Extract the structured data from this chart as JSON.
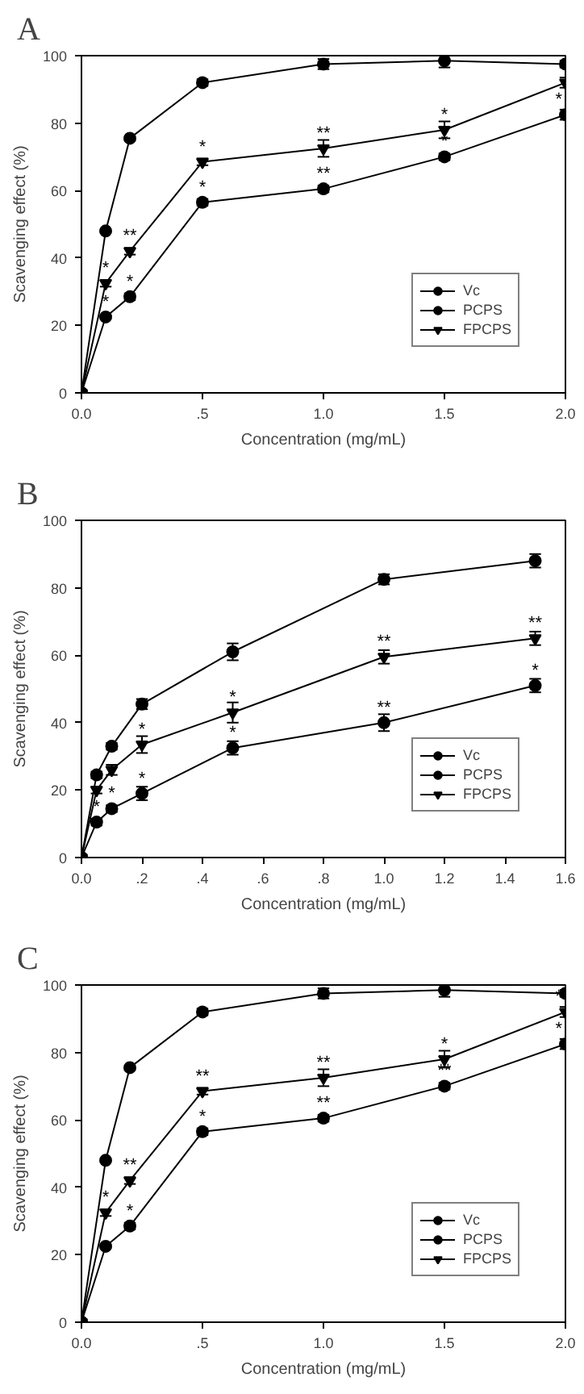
{
  "chart_data": [
    {
      "type": "line",
      "title": "A",
      "xlabel": "Concentration (mg/mL)",
      "ylabel": "Scavenging effect (%)",
      "x": [
        0,
        0.1,
        0.2,
        0.5,
        1.0,
        1.5,
        2.0
      ],
      "xlim": [
        0,
        2.0
      ],
      "ylim": [
        0,
        100
      ],
      "xticks": [
        {
          "value": 0,
          "label": "0.0"
        },
        {
          "value": 0.5,
          "label": ".5"
        },
        {
          "value": 1.0,
          "label": "1.0"
        },
        {
          "value": 1.5,
          "label": "1.5"
        },
        {
          "value": 2.0,
          "label": "2.0"
        }
      ],
      "yticks": [
        0,
        20,
        40,
        60,
        80,
        100
      ],
      "grid": false,
      "legend": "bottom right",
      "line_style": "solid",
      "series": [
        {
          "name": "Vc",
          "color": "#000000",
          "marker": "circle",
          "values": [
            0,
            48,
            75.5,
            92,
            97.5,
            98.5,
            97.5
          ],
          "errors": [
            null,
            0.5,
            0.5,
            1,
            1.5,
            2,
            1
          ]
        },
        {
          "name": "PCPS",
          "color": "#000000",
          "marker": "circle",
          "values": [
            0,
            22.5,
            28.5,
            56.5,
            60.5,
            70,
            82.5
          ],
          "errors": [
            null,
            0.5,
            1,
            1,
            1,
            1,
            1.5
          ]
        },
        {
          "name": "FPCPS",
          "color": "#000000",
          "marker": "triangle",
          "values": [
            0,
            32.5,
            42,
            68.5,
            72.5,
            78,
            92
          ],
          "errors": [
            null,
            1,
            1,
            1,
            2.5,
            2.5,
            1.5
          ]
        }
      ],
      "annotations": [
        {
          "text": "*",
          "x": 0.1,
          "y": 32.5
        },
        {
          "text": "**",
          "x": 0.2,
          "y": 42
        },
        {
          "text": "*",
          "x": 0.5,
          "y": 68.5
        },
        {
          "text": "**",
          "x": 1.0,
          "y": 72.5
        },
        {
          "text": "*",
          "x": 1.5,
          "y": 78
        },
        {
          "text": "*",
          "x": 0.1,
          "y": 22.5
        },
        {
          "text": "*",
          "x": 0.2,
          "y": 28.5
        },
        {
          "text": "*",
          "x": 0.5,
          "y": 56.5
        },
        {
          "text": "**",
          "x": 1.0,
          "y": 60.5
        },
        {
          "text": "*",
          "x": 1.5,
          "y": 70
        },
        {
          "text": "*",
          "x": 2.0,
          "y": 82.5
        }
      ]
    },
    {
      "type": "line",
      "title": "B",
      "xlabel": "Concentration (mg/mL)",
      "ylabel": "Scavenging effect (%)",
      "x": [
        0,
        0.05,
        0.1,
        0.2,
        0.5,
        1.0,
        1.5
      ],
      "xlim": [
        0,
        1.6
      ],
      "ylim": [
        0,
        100
      ],
      "xticks": [
        {
          "value": 0,
          "label": "0.0"
        },
        {
          "value": 0.2,
          "label": ".2"
        },
        {
          "value": 0.4,
          "label": ".4"
        },
        {
          "value": 0.6,
          "label": ".6"
        },
        {
          "value": 0.8,
          "label": ".8"
        },
        {
          "value": 1.0,
          "label": "1.0"
        },
        {
          "value": 1.2,
          "label": "1.2"
        },
        {
          "value": 1.4,
          "label": "1.4"
        },
        {
          "value": 1.6,
          "label": "1.6"
        }
      ],
      "yticks": [
        0,
        20,
        40,
        60,
        80,
        100
      ],
      "grid": false,
      "legend": "bottom right",
      "line_style": "solid",
      "series": [
        {
          "name": "Vc",
          "color": "#000000",
          "marker": "circle",
          "values": [
            0,
            24.5,
            33,
            45.5,
            61,
            82.5,
            88
          ],
          "errors": [
            null,
            1,
            1,
            1.5,
            2.5,
            1.5,
            2
          ]
        },
        {
          "name": "PCPS",
          "color": "#000000",
          "marker": "circle",
          "values": [
            0,
            10.5,
            14.5,
            19,
            32.5,
            40,
            51
          ],
          "errors": [
            null,
            1,
            1,
            2,
            2,
            2.5,
            2
          ]
        },
        {
          "name": "FPCPS",
          "color": "#000000",
          "marker": "triangle",
          "values": [
            0,
            20,
            26,
            33.5,
            43,
            59.5,
            65
          ],
          "errors": [
            null,
            1,
            1.5,
            2.5,
            3,
            2,
            2
          ]
        }
      ],
      "annotations": [
        {
          "text": "*",
          "x": 0.05,
          "y": 10.5
        },
        {
          "text": "*",
          "x": 0.1,
          "y": 14.5
        },
        {
          "text": "*",
          "x": 0.2,
          "y": 19
        },
        {
          "text": "*",
          "x": 0.5,
          "y": 32.5
        },
        {
          "text": "**",
          "x": 1.0,
          "y": 40
        },
        {
          "text": "*",
          "x": 1.5,
          "y": 51
        },
        {
          "text": "*",
          "x": 0.2,
          "y": 33.5
        },
        {
          "text": "*",
          "x": 0.5,
          "y": 43
        },
        {
          "text": "**",
          "x": 1.0,
          "y": 59.5
        },
        {
          "text": "**",
          "x": 1.5,
          "y": 65
        }
      ]
    },
    {
      "type": "line",
      "title": "C",
      "xlabel": "Concentration (mg/mL)",
      "ylabel": "Scavenging effect (%)",
      "x": [
        0,
        0.1,
        0.2,
        0.5,
        1.0,
        1.5,
        2.0
      ],
      "xlim": [
        0,
        2.0
      ],
      "ylim": [
        0,
        100
      ],
      "xticks": [
        {
          "value": 0,
          "label": "0.0"
        },
        {
          "value": 0.5,
          "label": ".5"
        },
        {
          "value": 1.0,
          "label": "1.0"
        },
        {
          "value": 1.5,
          "label": "1.5"
        },
        {
          "value": 2.0,
          "label": "2.0"
        }
      ],
      "yticks": [
        0,
        20,
        40,
        60,
        80,
        100
      ],
      "grid": false,
      "legend": "bottom right",
      "line_style": "solid",
      "series": [
        {
          "name": "Vc",
          "color": "#000000",
          "marker": "circle",
          "values": [
            0,
            48,
            75.5,
            92,
            97.5,
            98.5,
            97.5
          ],
          "errors": [
            null,
            0.5,
            0.5,
            1,
            1.5,
            2,
            1
          ]
        },
        {
          "name": "PCPS",
          "color": "#000000",
          "marker": "circle",
          "values": [
            0,
            22.5,
            28.5,
            56.5,
            60.5,
            70,
            82.5
          ],
          "errors": [
            null,
            0.5,
            1,
            1,
            1,
            1,
            1.5
          ]
        },
        {
          "name": "FPCPS",
          "color": "#000000",
          "marker": "triangle",
          "values": [
            0,
            32.5,
            42,
            68.5,
            72.5,
            78,
            92
          ],
          "errors": [
            null,
            1,
            1,
            1,
            2.5,
            2.5,
            1.5
          ]
        }
      ],
      "annotations": [
        {
          "text": "*",
          "x": 0.1,
          "y": 32.5
        },
        {
          "text": "**",
          "x": 0.2,
          "y": 42
        },
        {
          "text": "**",
          "x": 0.5,
          "y": 68.5
        },
        {
          "text": "**",
          "x": 1.0,
          "y": 72.5
        },
        {
          "text": "*",
          "x": 1.5,
          "y": 78
        },
        {
          "text": "*",
          "x": 2.0,
          "y": 92
        },
        {
          "text": "*",
          "x": 0.2,
          "y": 28.5
        },
        {
          "text": "*",
          "x": 0.5,
          "y": 56.5
        },
        {
          "text": "**",
          "x": 1.0,
          "y": 60.5
        },
        {
          "text": "**",
          "x": 1.5,
          "y": 70
        },
        {
          "text": "*",
          "x": 2.0,
          "y": 82.5
        }
      ]
    }
  ]
}
